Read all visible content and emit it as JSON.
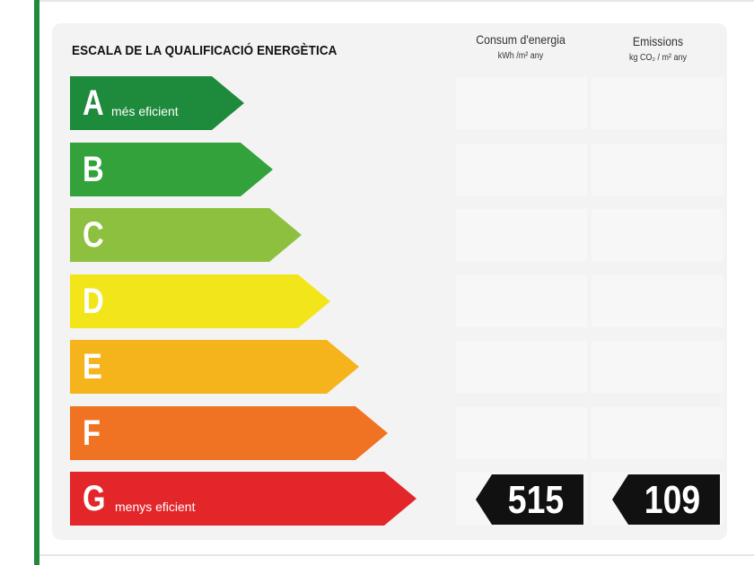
{
  "title": "ESCALA DE LA QUALIFICACIÓ ENERGÈTICA",
  "columns": {
    "consum": {
      "label": "Consum d'energia",
      "unit": "kWh /m² any"
    },
    "emissions": {
      "label": "Emissions",
      "unit": "kg CO₂ / m² any"
    }
  },
  "ratings": [
    {
      "letter": "A",
      "description": "més eficient",
      "color": "#1e8a3c"
    },
    {
      "letter": "B",
      "description": "",
      "color": "#33a23b"
    },
    {
      "letter": "C",
      "description": "",
      "color": "#8dc03f"
    },
    {
      "letter": "D",
      "description": "",
      "color": "#f2e61b"
    },
    {
      "letter": "E",
      "description": "",
      "color": "#f6b41c"
    },
    {
      "letter": "F",
      "description": "",
      "color": "#ef7322"
    },
    {
      "letter": "G",
      "description": "menys eficient",
      "color": "#e3262a"
    }
  ],
  "result": {
    "rating": "G",
    "consum_value": "515",
    "emissions_value": "109"
  },
  "colors": {
    "border": "#1e8a3c",
    "tag": "#111111"
  }
}
